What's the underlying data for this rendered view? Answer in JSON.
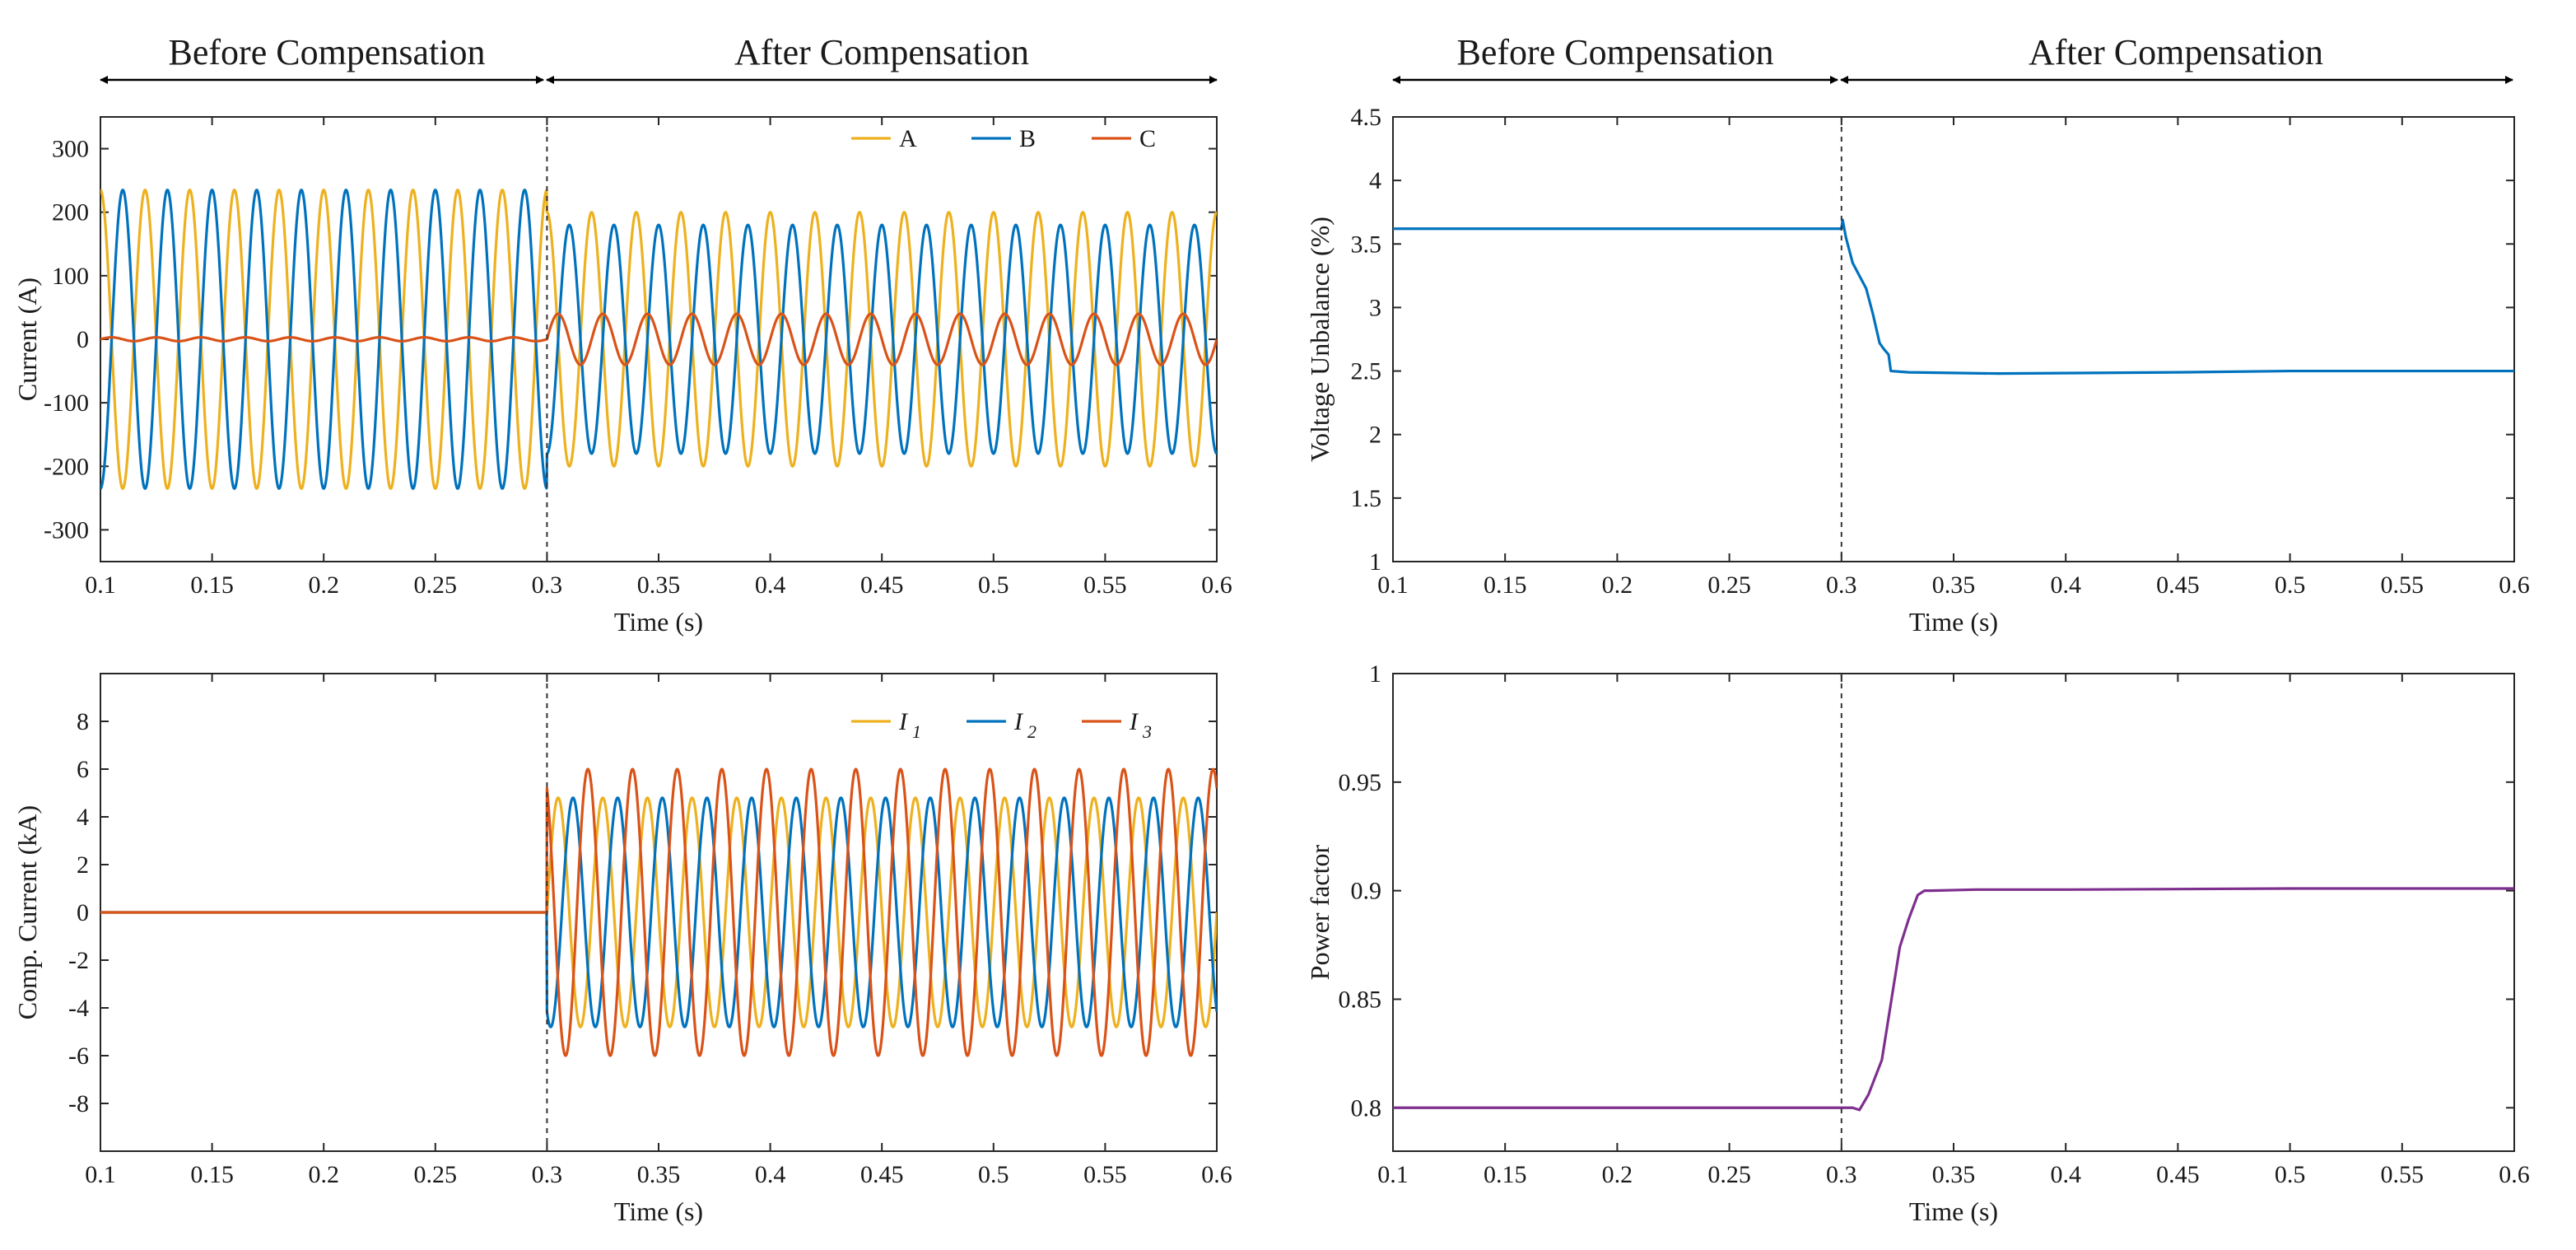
{
  "figure": {
    "header_before": "Before Compensation",
    "header_after": "After Compensation"
  },
  "chart_data": [
    {
      "id": "phase-currents",
      "type": "line",
      "xlabel": "Time (s)",
      "ylabel": "Current (A)",
      "xlim": [
        0.1,
        0.6
      ],
      "ylim": [
        -350,
        350
      ],
      "xticks": [
        0.1,
        0.15,
        0.2,
        0.25,
        0.3,
        0.35,
        0.4,
        0.45,
        0.5,
        0.55,
        0.6
      ],
      "yticks": [
        -300,
        -200,
        -100,
        0,
        100,
        200,
        300
      ],
      "switch_time": 0.3,
      "frequency_hz": 50,
      "legend": [
        "A",
        "B",
        "C"
      ],
      "series": [
        {
          "name": "A",
          "color": "#edb120",
          "phase_deg": 90,
          "amplitude_before": 235,
          "amplitude_after": 200
        },
        {
          "name": "B",
          "color": "#0072bd",
          "phase_deg": -90,
          "amplitude_before": 235,
          "amplitude_after": 180
        },
        {
          "name": "C",
          "color": "#d95319",
          "phase_deg": 0,
          "amplitude_before": 3,
          "amplitude_after": 40
        }
      ]
    },
    {
      "id": "voltage-unbalance",
      "type": "line",
      "xlabel": "Time (s)",
      "ylabel": "Voltage Unbalance (%)",
      "xlim": [
        0.1,
        0.6
      ],
      "ylim": [
        1,
        4.5
      ],
      "xticks": [
        0.1,
        0.15,
        0.2,
        0.25,
        0.3,
        0.35,
        0.4,
        0.45,
        0.5,
        0.55,
        0.6
      ],
      "yticks": [
        1,
        1.5,
        2,
        2.5,
        3,
        3.5,
        4,
        4.5
      ],
      "switch_time": 0.3,
      "series": [
        {
          "name": "Voltage Unbalance",
          "color": "#0072bd",
          "x": [
            0.1,
            0.3,
            0.3005,
            0.302,
            0.305,
            0.308,
            0.311,
            0.314,
            0.317,
            0.319,
            0.321,
            0.322,
            0.33,
            0.37,
            0.45,
            0.5,
            0.6
          ],
          "y": [
            3.62,
            3.62,
            3.69,
            3.55,
            3.35,
            3.25,
            3.15,
            2.95,
            2.72,
            2.67,
            2.63,
            2.5,
            2.49,
            2.48,
            2.49,
            2.5,
            2.5
          ]
        }
      ]
    },
    {
      "id": "compensator-currents",
      "type": "line",
      "xlabel": "Time (s)",
      "ylabel": "Comp. Current (kA)",
      "xlim": [
        0.1,
        0.6
      ],
      "ylim": [
        -10,
        10
      ],
      "xticks": [
        0.1,
        0.15,
        0.2,
        0.25,
        0.3,
        0.35,
        0.4,
        0.45,
        0.5,
        0.55,
        0.6
      ],
      "yticks": [
        -8,
        -6,
        -4,
        -2,
        0,
        2,
        4,
        6,
        8
      ],
      "switch_time": 0.3,
      "frequency_hz": 50,
      "legend": [
        "I",
        "I",
        "I"
      ],
      "legend_subscripts": [
        "1",
        "2",
        "3"
      ],
      "series": [
        {
          "name": "I1",
          "color": "#edb120",
          "phase_deg": 0,
          "amplitude_before": 0,
          "amplitude_after": 4.8
        },
        {
          "name": "I2",
          "color": "#0072bd",
          "phase_deg": -120,
          "amplitude_before": 0,
          "amplitude_after": 4.8
        },
        {
          "name": "I3",
          "color": "#d95319",
          "phase_deg": 120,
          "amplitude_before": 0,
          "amplitude_after": 6.0
        }
      ]
    },
    {
      "id": "power-factor",
      "type": "line",
      "xlabel": "Time (s)",
      "ylabel": "Power factor",
      "xlim": [
        0.1,
        0.6
      ],
      "ylim": [
        0.78,
        1.0
      ],
      "xticks": [
        0.1,
        0.15,
        0.2,
        0.25,
        0.3,
        0.35,
        0.4,
        0.45,
        0.5,
        0.55,
        0.6
      ],
      "yticks": [
        0.8,
        0.85,
        0.9,
        0.95,
        1
      ],
      "switch_time": 0.3,
      "series": [
        {
          "name": "Power factor",
          "color": "#7e2f8e",
          "x": [
            0.1,
            0.3,
            0.305,
            0.308,
            0.312,
            0.318,
            0.322,
            0.326,
            0.33,
            0.334,
            0.337,
            0.34,
            0.36,
            0.4,
            0.5,
            0.6
          ],
          "y": [
            0.8,
            0.8,
            0.8,
            0.799,
            0.806,
            0.822,
            0.848,
            0.874,
            0.887,
            0.898,
            0.9,
            0.9,
            0.9005,
            0.9005,
            0.901,
            0.901
          ]
        }
      ]
    }
  ]
}
